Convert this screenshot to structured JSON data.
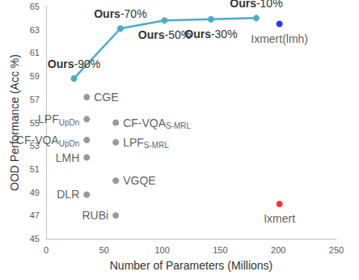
{
  "chart_data": {
    "type": "scatter",
    "x_label": "Number of Parameters (Millions)",
    "y_label": "OOD Performance (Acc %)",
    "xlim": [
      0,
      250
    ],
    "xticks": [
      0,
      50,
      100,
      150,
      200,
      250
    ],
    "ylim": [
      45,
      65
    ],
    "yticks": [
      45,
      47,
      49,
      51,
      53,
      55,
      57,
      59,
      61,
      63,
      65
    ],
    "grid": false,
    "series": [
      {
        "type": "line",
        "color": "#4bacc6",
        "marker": "circle",
        "x": [
          24,
          64,
          102,
          142,
          181
        ],
        "values": [
          58.8,
          63.1,
          63.8,
          63.9,
          64.0
        ],
        "labels": [
          "Ours-90%",
          "Ours-70%",
          "Ours-50%",
          "Ours-30%",
          "Ours-10%"
        ]
      },
      {
        "type": "scatter",
        "color": "#7f7f7f",
        "marker": "circle",
        "x": [
          35,
          35,
          60,
          60,
          35,
          35,
          60,
          35,
          60
        ],
        "values": [
          57.2,
          55.3,
          55.0,
          53.3,
          53.5,
          52.0,
          50.0,
          48.8,
          47.0
        ],
        "labels": [
          "CGE",
          "LPF",
          "CF-VQA",
          "LPF",
          "CF-VQA",
          "LMH",
          "VGQE",
          "DLR",
          "RUBi"
        ],
        "subscripts": [
          null,
          "UpDn",
          "S-MRL",
          "S-MRL",
          "UpDn",
          null,
          null,
          null,
          null
        ]
      },
      {
        "type": "scatter",
        "color": "#0000ff",
        "marker": "circle",
        "x": [
          201
        ],
        "values": [
          63.5
        ],
        "labels": [
          "Ixmert(lmh)"
        ]
      },
      {
        "type": "scatter",
        "color": "#ff0000",
        "marker": "circle",
        "x": [
          201
        ],
        "values": [
          48.0
        ],
        "labels": [
          "Ixmert"
        ]
      }
    ]
  }
}
